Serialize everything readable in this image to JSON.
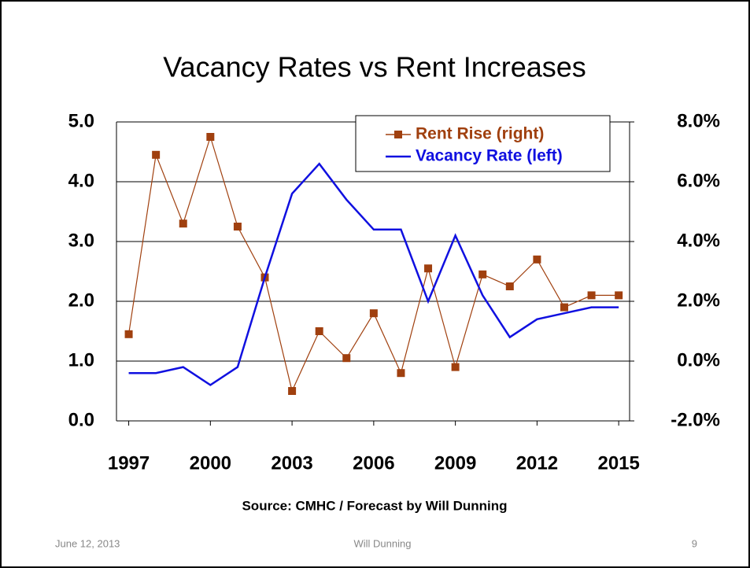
{
  "slide": {
    "date": "June 12, 2013",
    "author": "Will Dunning",
    "page_number": "9"
  },
  "chart_data": {
    "type": "line",
    "title": "Vacancy Rates vs Rent Increases",
    "source": "Source:  CMHC / Forecast by Will Dunning",
    "x": [
      1997,
      1998,
      1999,
      2000,
      2001,
      2002,
      2003,
      2004,
      2005,
      2006,
      2007,
      2008,
      2009,
      2010,
      2011,
      2012,
      2013,
      2014,
      2015
    ],
    "xlim": [
      1996.55,
      2015.4
    ],
    "xticks": [
      1997,
      2000,
      2003,
      2006,
      2009,
      2012,
      2015
    ],
    "ylim": [
      0,
      5
    ],
    "yticks": [
      {
        "value": 0,
        "label": "0.0"
      },
      {
        "value": 1,
        "label": "1.0"
      },
      {
        "value": 2,
        "label": "2.0"
      },
      {
        "value": 3,
        "label": "3.0"
      },
      {
        "value": 4,
        "label": "4.0"
      },
      {
        "value": 5,
        "label": "5.0"
      }
    ],
    "y2lim": [
      -2,
      8
    ],
    "y2ticks": [
      {
        "value": -2,
        "label": "-2.0%"
      },
      {
        "value": 0,
        "label": "0.0%"
      },
      {
        "value": 2,
        "label": "2.0%"
      },
      {
        "value": 4,
        "label": "4.0%"
      },
      {
        "value": 6,
        "label": "6.0%"
      },
      {
        "value": 8,
        "label": "8.0%"
      }
    ],
    "grid": true,
    "legend": "top-right",
    "series": [
      {
        "name": "Rent Rise (right)",
        "color": "#a0400f",
        "axis": "y2",
        "marker": "square",
        "values": [
          0.9,
          6.9,
          4.6,
          7.5,
          4.5,
          2.8,
          -1.0,
          1.0,
          0.1,
          1.6,
          -0.4,
          3.1,
          -0.2,
          2.9,
          2.5,
          3.4,
          1.8,
          2.2,
          2.2
        ]
      },
      {
        "name": "Vacancy Rate (left)",
        "color": "#1010e0",
        "values": [
          0.8,
          0.8,
          0.9,
          0.6,
          0.9,
          2.4,
          3.8,
          4.3,
          3.7,
          3.2,
          3.2,
          2.0,
          3.1,
          2.1,
          1.4,
          1.7,
          1.8,
          1.9,
          1.9
        ]
      }
    ]
  }
}
